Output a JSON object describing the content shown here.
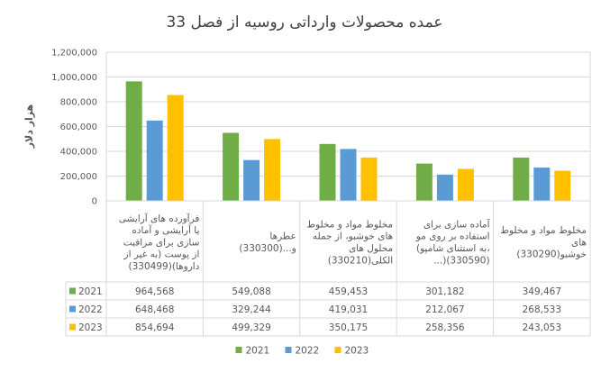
{
  "chart_data": {
    "type": "bar",
    "title": "عمده محصولات وارداتی روسیه از فصل 33",
    "ylabel": "هزار دلار",
    "ylim": [
      0,
      1200000
    ],
    "yticks": [
      "0",
      "200,000",
      "400,000",
      "600,000",
      "800,000",
      "1,000,000",
      "1,200,000"
    ],
    "grid": true,
    "legend_position": "bottom",
    "categories": [
      [
        "فرآورده های آرایشی",
        "یا آرایشی و آماده",
        "سازی برای مراقبت",
        "از پوست (به غیر از",
        "داروها)(330499)"
      ],
      [
        "عطرها",
        "و...(330300)"
      ],
      [
        "مخلوط مواد و مخلوط",
        "های خوشبو، از جمله",
        "محلول های",
        "الکلی(330210)"
      ],
      [
        "آماده سازی برای",
        "استفاده بر روی مو",
        "(به استثنای شامپو،",
        "...)(330590)"
      ],
      [
        "مخلوط مواد و مخلوط",
        "های",
        "خوشبو(330290)"
      ]
    ],
    "series": [
      {
        "name": "2021",
        "color": "#70AD47",
        "values": [
          964568,
          549088,
          459453,
          301182,
          349467
        ],
        "labels": [
          "964,568",
          "549,088",
          "459,453",
          "301,182",
          "349,467"
        ]
      },
      {
        "name": "2022",
        "color": "#5B9BD5",
        "values": [
          648468,
          329244,
          419031,
          212067,
          268533
        ],
        "labels": [
          "648,468",
          "329,244",
          "419,031",
          "212,067",
          "268,533"
        ]
      },
      {
        "name": "2023",
        "color": "#FFC000",
        "values": [
          854694,
          499329,
          350175,
          258356,
          243053
        ],
        "labels": [
          "854,694",
          "499,329",
          "350,175",
          "258,356",
          "243,053"
        ]
      }
    ]
  }
}
